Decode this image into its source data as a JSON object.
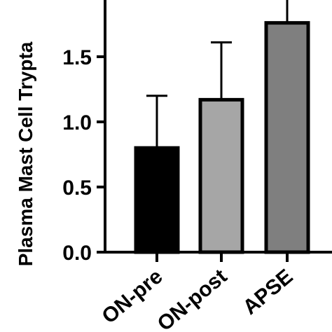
{
  "chart_data": {
    "type": "bar",
    "ylabel": "Plasma Mast Cell Trypta",
    "ylim": [
      0,
      2.0
    ],
    "yticks": [
      0.0,
      0.5,
      1.0,
      1.5
    ],
    "ytick_labels": [
      "0.0",
      "0.5",
      "1.0",
      "1.5"
    ],
    "categories": [
      "ON-pre",
      "ON-post",
      "APSE"
    ],
    "values": [
      0.8,
      1.17,
      1.76
    ],
    "errors": [
      0.4,
      0.44,
      0.36
    ],
    "bar_colors": [
      "#000000",
      "#a6a6a6",
      "#7f7f7f"
    ],
    "grid": false
  }
}
